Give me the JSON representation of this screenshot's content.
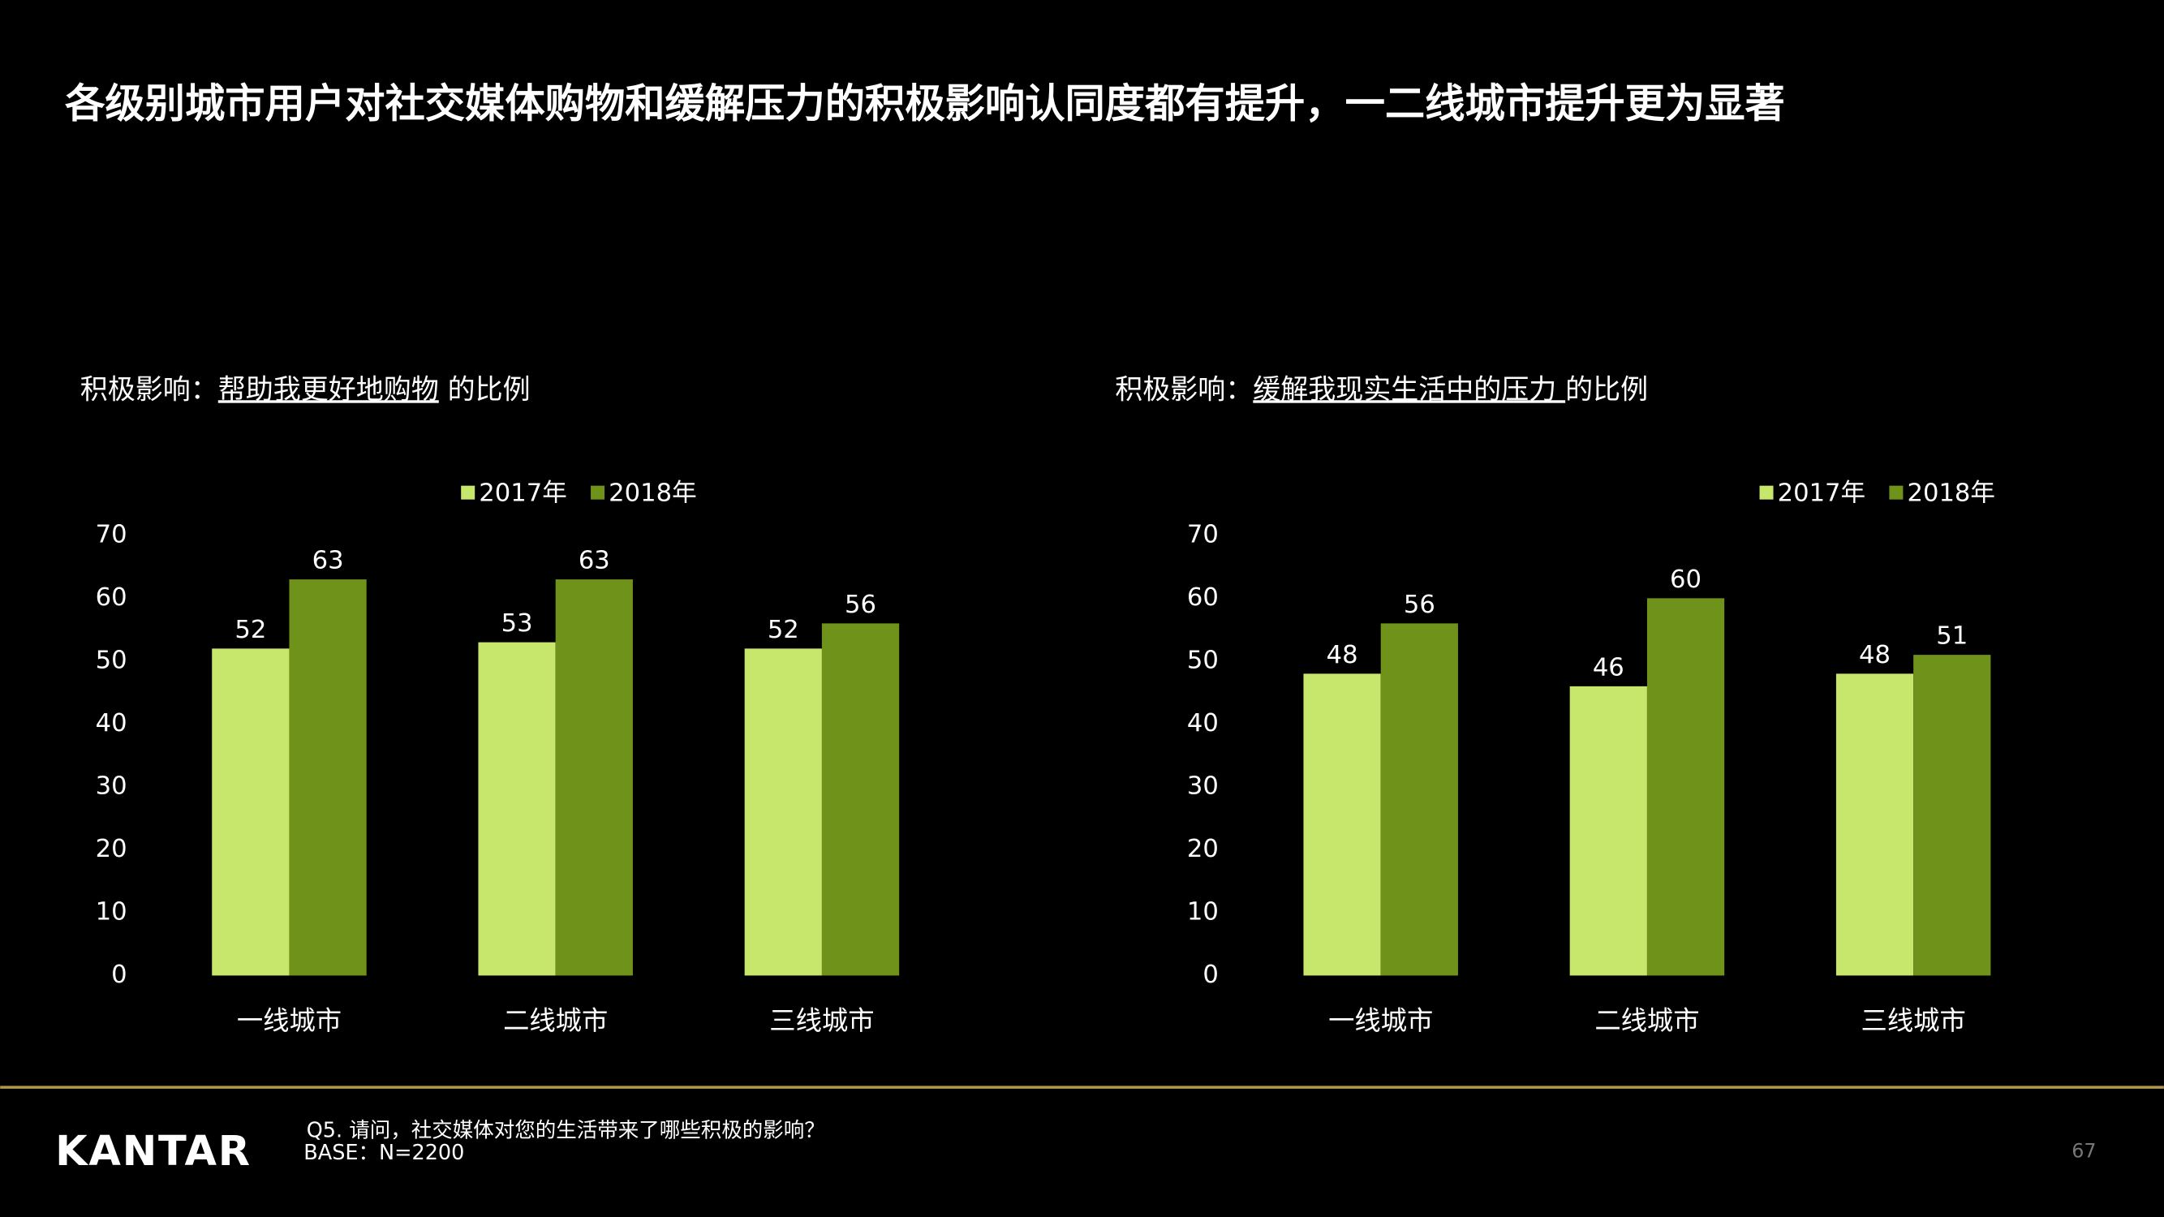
{
  "title": "各级别城市用户对社交媒体购物和缓解压力的积极影响认同度都有提升，一二线城市提升更为显著",
  "chart_data": [
    {
      "type": "bar",
      "subtitle_prefix": "积极影响：",
      "subtitle_highlight": "帮助我更好地购物",
      "subtitle_suffix": " 的比例",
      "categories": [
        "一线城市",
        "二线城市",
        "三线城市"
      ],
      "series": [
        {
          "name": "2017年",
          "color": "#c6e66c",
          "values": [
            52,
            53,
            52
          ]
        },
        {
          "name": "2018年",
          "color": "#6f921a",
          "values": [
            63,
            63,
            56
          ]
        }
      ],
      "ylim": [
        0,
        70
      ],
      "yticks": [
        0,
        10,
        20,
        30,
        40,
        50,
        60,
        70
      ],
      "grid": false,
      "legend": "top"
    },
    {
      "type": "bar",
      "subtitle_prefix": "积极影响：",
      "subtitle_highlight": "缓解我现实生活中的压力 ",
      "subtitle_suffix": "的比例",
      "categories": [
        "一线城市",
        "二线城市",
        "三线城市"
      ],
      "series": [
        {
          "name": "2017年",
          "color": "#c6e66c",
          "values": [
            48,
            46,
            48
          ]
        },
        {
          "name": "2018年",
          "color": "#6f921a",
          "values": [
            56,
            60,
            51
          ]
        }
      ],
      "ylim": [
        0,
        70
      ],
      "yticks": [
        0,
        10,
        20,
        30,
        40,
        50,
        60,
        70
      ],
      "grid": false,
      "legend": "top"
    }
  ],
  "footer": {
    "logo": "KANTAR",
    "question": "Q5. 请问，社交媒体对您的生活带来了哪些积极的影响？",
    "base": "BASE：N=2200",
    "page": "67"
  }
}
